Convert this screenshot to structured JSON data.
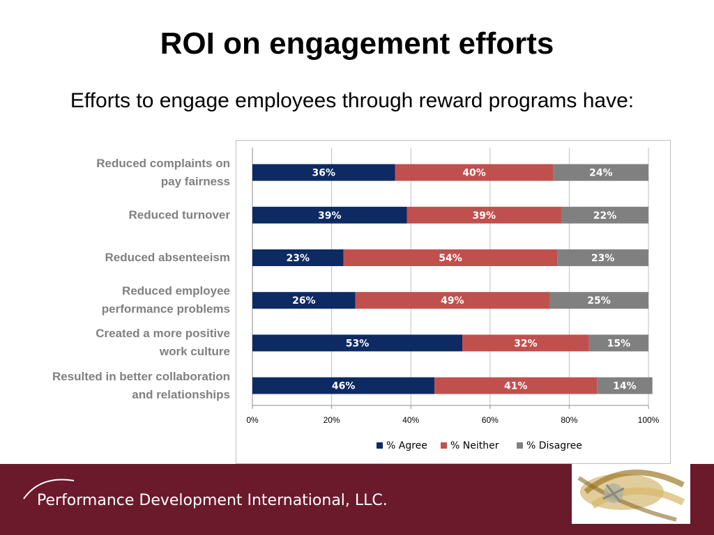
{
  "title": "ROI on engagement efforts",
  "subtitle": "Efforts to engage employees through reward programs have:",
  "category_labels": [
    [
      "Reduced complaints on",
      "pay fairness"
    ],
    [
      "Reduced turnover"
    ],
    [
      "Reduced absenteeism"
    ],
    [
      "Reduced employee",
      "performance problems"
    ],
    [
      "Created a more positive",
      "work culture"
    ],
    [
      "Resulted in better collaboration",
      "and relationships"
    ]
  ],
  "chart_data": {
    "type": "bar",
    "orientation": "horizontal",
    "stacked": true,
    "percent": true,
    "categories": [
      "Reduced complaints on pay fairness",
      "Reduced turnover",
      "Reduced absenteeism",
      "Reduced employee performance problems",
      "Created a more positive work culture",
      "Resulted in better collaboration and relationships"
    ],
    "series": [
      {
        "name": "% Agree",
        "color": "#0d2a63",
        "values": [
          36,
          39,
          23,
          26,
          53,
          46
        ]
      },
      {
        "name": "% Neither",
        "color": "#c0504d",
        "values": [
          40,
          39,
          54,
          49,
          32,
          41
        ]
      },
      {
        "name": "% Disagree",
        "color": "#808080",
        "values": [
          24,
          22,
          23,
          25,
          15,
          14
        ]
      }
    ],
    "xlim": [
      0,
      100
    ],
    "xticks": [
      "0%",
      "20%",
      "40%",
      "60%",
      "80%",
      "100%"
    ],
    "grid": true,
    "legend": "bottom"
  },
  "footer": {
    "company": "Performance Development International, LLC.",
    "background": "#6b1a2c"
  }
}
